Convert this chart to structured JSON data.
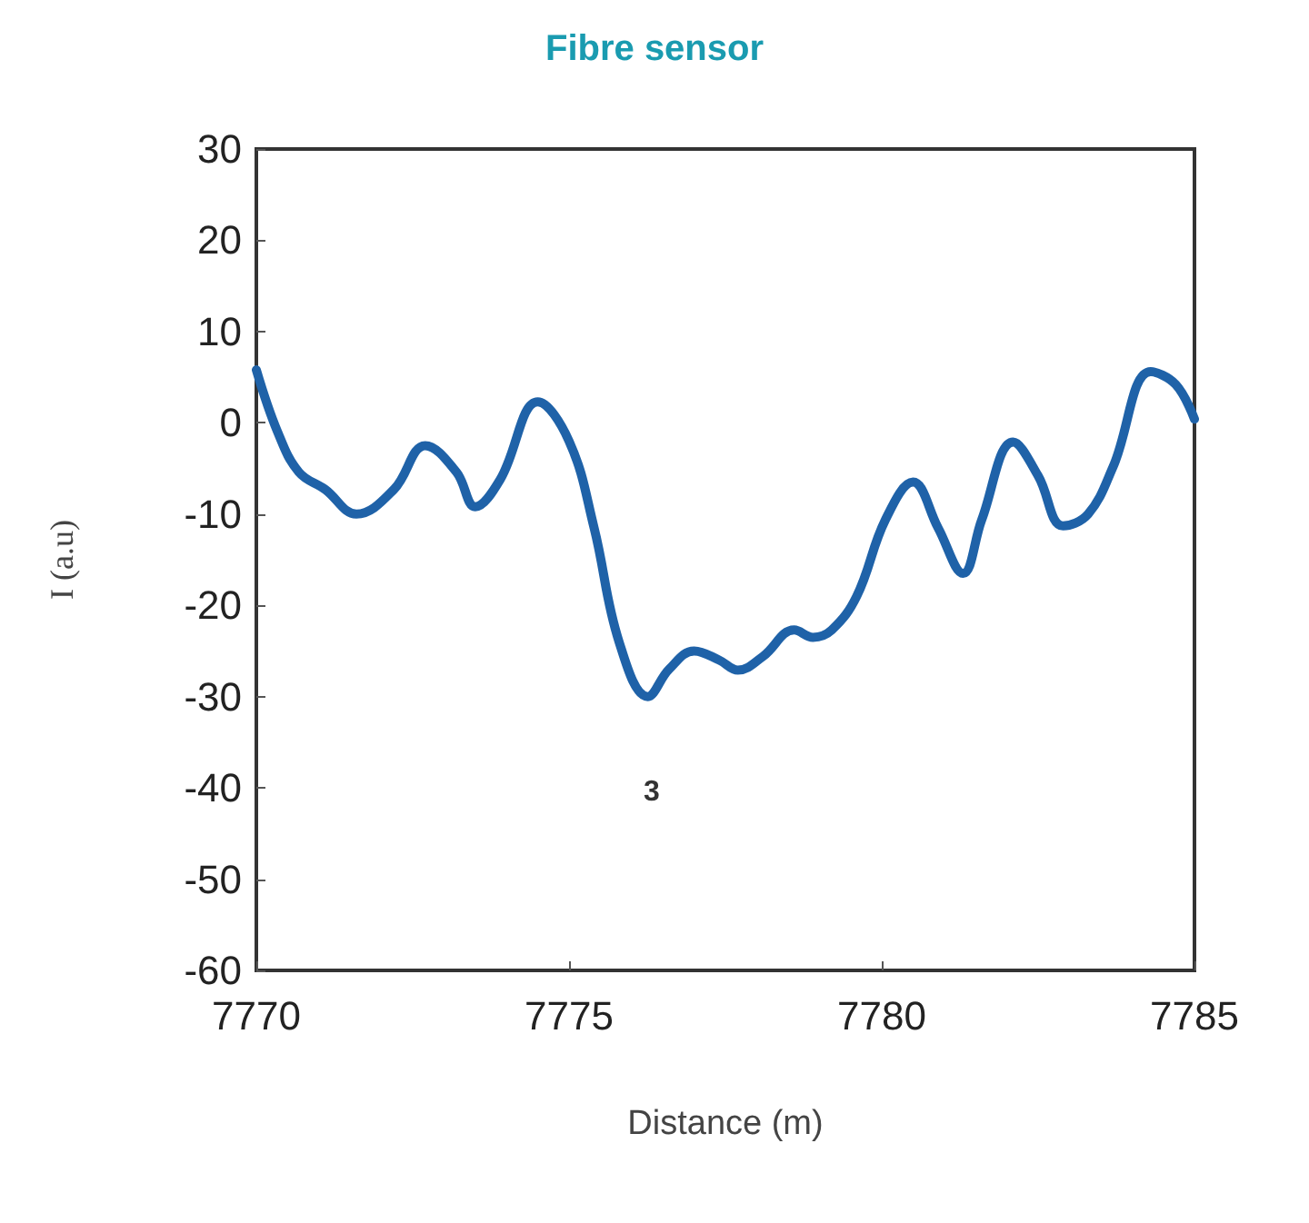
{
  "chart_data": {
    "type": "line",
    "title": "Fibre sensor",
    "xlabel": "Distance (m)",
    "ylabel": "I (a.u)",
    "annotations": [
      "3"
    ],
    "xlim": [
      7770,
      7785
    ],
    "xticks": [
      7770,
      7775,
      7780,
      7785
    ],
    "ylim": [
      -60,
      30
    ],
    "yticks": [
      -60,
      -50,
      -40,
      -30,
      -20,
      -10,
      0,
      10,
      20,
      30
    ],
    "grid": false,
    "marker": "none",
    "line_style": "solid",
    "series": [
      {
        "color": "#1f62a8",
        "x": [
          7770,
          7770.34,
          7770.68,
          7771.1,
          7771.6,
          7772.2,
          7772.7,
          7773.2,
          7773.5,
          7773.9,
          7774.5,
          7775,
          7775.4,
          7775.8,
          7776.26,
          7776.6,
          7777,
          7777.4,
          7777.7,
          7778.1,
          7778.6,
          7778.9,
          7779.2,
          7779.6,
          7780.06,
          7780.5,
          7780.9,
          7781.3,
          7781.6,
          7782.1,
          7782.5,
          7782.9,
          7783.3,
          7783.7,
          7784.3,
          7784.7,
          7785
        ],
        "values": [
          5.8,
          -1,
          -5.4,
          -7.3,
          -10,
          -7.3,
          -2.5,
          -5.4,
          -9.2,
          -6.2,
          2.3,
          -2,
          -11.5,
          -24,
          -30,
          -27,
          -25,
          -26,
          -27.1,
          -25.6,
          -22.7,
          -23.5,
          -22.7,
          -19,
          -10.6,
          -6.5,
          -11.5,
          -16.5,
          -10.6,
          -2.1,
          -5.8,
          -11.3,
          -10,
          -4.8,
          5.6,
          4.2,
          0.4
        ]
      }
    ]
  }
}
